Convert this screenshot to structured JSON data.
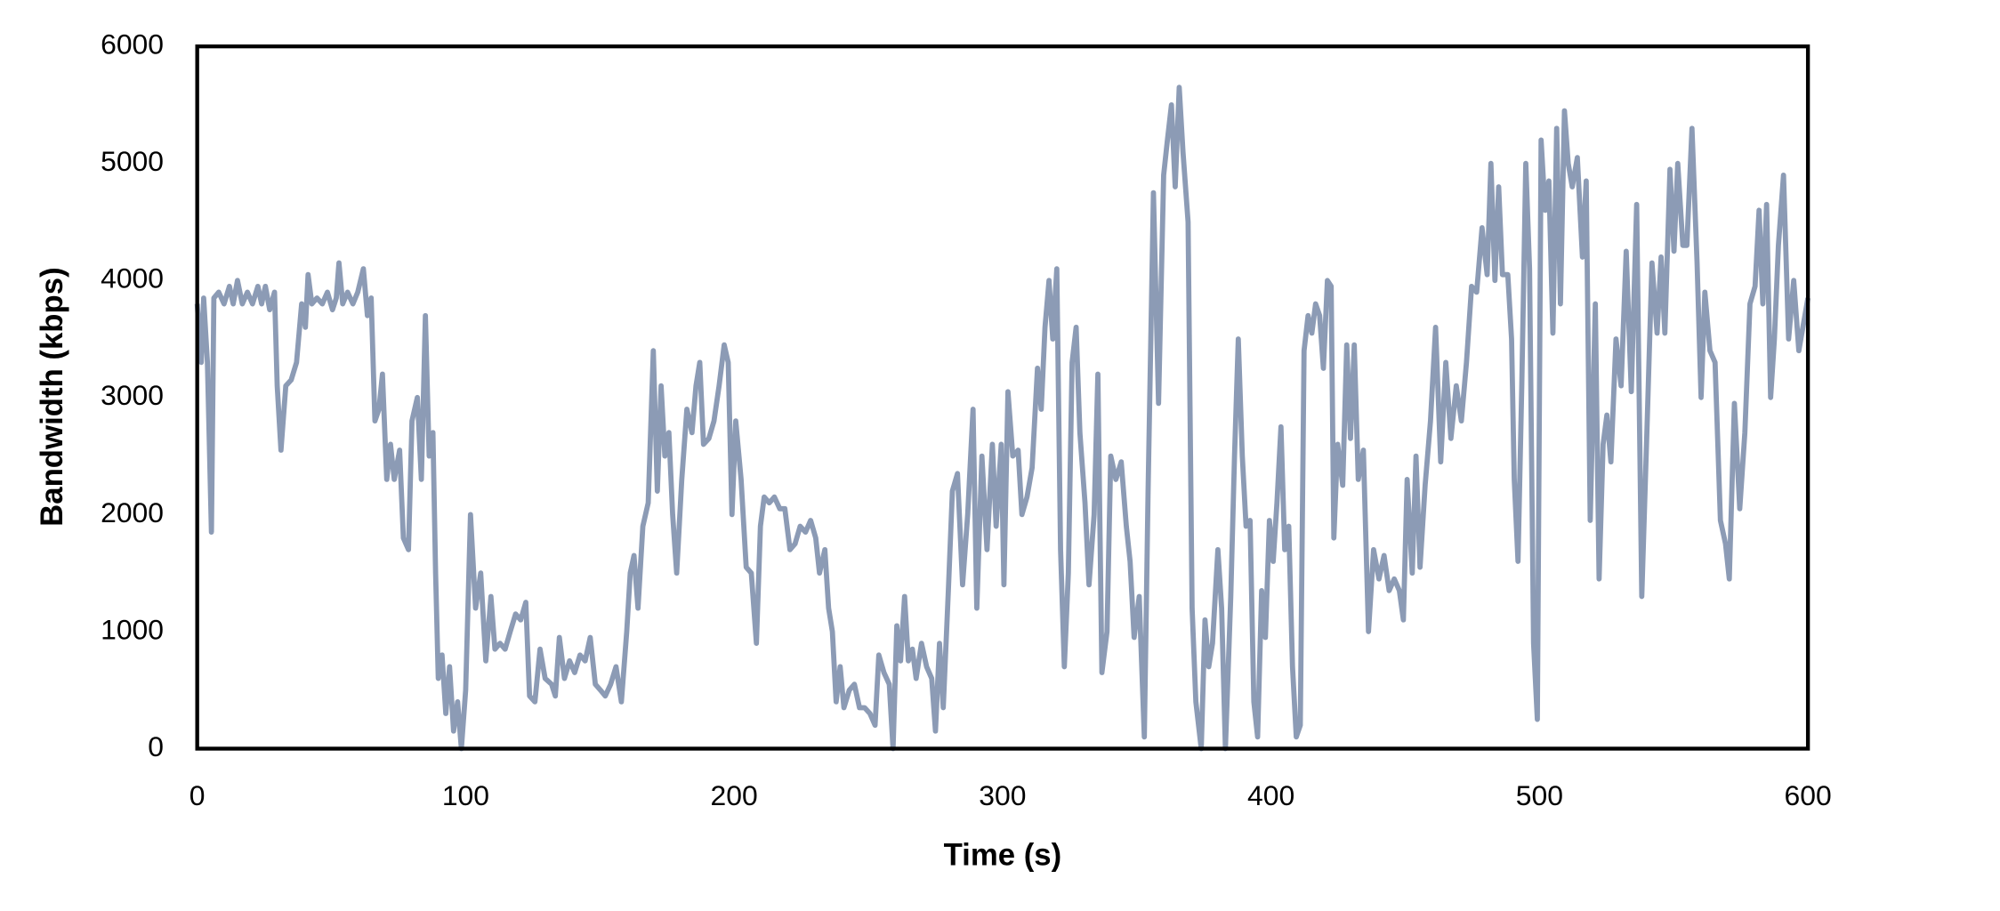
{
  "chart_data": {
    "type": "line",
    "xlabel": "Time (s)",
    "ylabel": "Bandwidth (kbps)",
    "xlim": [
      0,
      600
    ],
    "xticks": [
      0,
      100,
      200,
      300,
      400,
      500,
      600
    ],
    "ylim": [
      0,
      6000
    ],
    "yticks": [
      0,
      1000,
      2000,
      3000,
      4000,
      5000,
      6000
    ],
    "grid": false,
    "series": [
      {
        "color": "#8c9bb5",
        "x": [
          0,
          1.5,
          2.4,
          3.8,
          5.3,
          6.2,
          8,
          10,
          12,
          13.4,
          15,
          16.8,
          18.7,
          20.6,
          22.6,
          24,
          25.4,
          27,
          28.8,
          29.8,
          31.2,
          33,
          35,
          37,
          38.9,
          40.3,
          41.3,
          42.7,
          44.6,
          46.6,
          48.5,
          50.4,
          51.8,
          52.8,
          54.2,
          56,
          58,
          59.8,
          61.9,
          63.4,
          64.8,
          66.2,
          67.7,
          69,
          70.6,
          72,
          73.4,
          75.4,
          76.8,
          78.7,
          80,
          82,
          83.5,
          85,
          86.4,
          87.8,
          88.8,
          89.8,
          91.2,
          92.6,
          94,
          95.5,
          97,
          98.4,
          100,
          101.8,
          103.7,
          105.6,
          107.5,
          109.4,
          110.9,
          112.8,
          114.7,
          116.6,
          118.6,
          120.5,
          122.4,
          123.8,
          125.8,
          127.7,
          129.6,
          132,
          133.4,
          134.9,
          136.8,
          138.7,
          140.6,
          142.6,
          144.5,
          146.4,
          148.3,
          150.2,
          152,
          154,
          156,
          158,
          160,
          161.3,
          162.7,
          164.2,
          166,
          168,
          169.9,
          171.4,
          172.8,
          174.2,
          175.7,
          177.1,
          178.6,
          180.5,
          182.4,
          184.3,
          185.8,
          187.2,
          188.6,
          190.6,
          192.5,
          194.4,
          196.3,
          197.8,
          199.2,
          200.6,
          202.6,
          204.5,
          206.4,
          208.3,
          209.8,
          211.2,
          213.1,
          215,
          217,
          218.9,
          220.8,
          222.7,
          224.6,
          226.6,
          228.5,
          230.4,
          231.8,
          233.8,
          235.2,
          236.6,
          238,
          239.5,
          240.9,
          242.9,
          244.8,
          246.7,
          248.6,
          250.6,
          252.5,
          253.9,
          255.8,
          257.8,
          259.2,
          260.6,
          262,
          263.5,
          264.9,
          266.4,
          267.8,
          269.8,
          271.7,
          273.6,
          275,
          276.5,
          277.9,
          279.8,
          281.3,
          283.2,
          285.1,
          287,
          289,
          290.4,
          292.3,
          294.2,
          296.2,
          297.6,
          299.5,
          300.5,
          302,
          303.8,
          305.8,
          307.2,
          309.1,
          311,
          313,
          314.4,
          315.8,
          317.3,
          318.7,
          320.2,
          321.6,
          323,
          324.5,
          325.9,
          327.4,
          328.8,
          330.7,
          332.2,
          334.1,
          335.5,
          337,
          338.9,
          340.3,
          342.2,
          344.2,
          346.1,
          347.5,
          349,
          350.9,
          352.8,
          354.2,
          356.2,
          358.1,
          360,
          361.4,
          362.9,
          364.3,
          365.8,
          367.2,
          369.1,
          370.6,
          372,
          374,
          375.4,
          376.8,
          378.2,
          380.2,
          381.6,
          383,
          385,
          386.4,
          387.8,
          389.3,
          390.7,
          392.2,
          393.6,
          395,
          396.5,
          397.9,
          399.4,
          400.8,
          402.2,
          403.7,
          405.1,
          406.6,
          408,
          409.4,
          410.9,
          412.3,
          413.8,
          415.2,
          416.6,
          418.1,
          419.5,
          421,
          422.4,
          423.4,
          424.8,
          426.7,
          428.2,
          429.6,
          431,
          432.5,
          434.4,
          436.3,
          438.2,
          440.2,
          442.1,
          444,
          445.9,
          447.8,
          449.3,
          450.7,
          452.6,
          454,
          455.5,
          457.4,
          459.4,
          461.3,
          463.2,
          465.1,
          467,
          469,
          470.9,
          472.8,
          474.7,
          476.6,
          478.6,
          480.5,
          481.9,
          483.4,
          484.8,
          486.2,
          488.2,
          489.6,
          490.6,
          492,
          493.4,
          494.9,
          496.3,
          497.8,
          499.2,
          500.6,
          502.1,
          503.5,
          505,
          506.4,
          507.8,
          509.3,
          510.7,
          512.2,
          514.1,
          516,
          517.4,
          518.9,
          520.8,
          522.2,
          523.7,
          525.1,
          526.6,
          528.5,
          530.4,
          532.3,
          534.2,
          536.2,
          538.1,
          540,
          541.9,
          543.8,
          545.3,
          546.7,
          548.6,
          550.1,
          551.5,
          553.4,
          554.9,
          556.8,
          558.7,
          560.2,
          561.6,
          563.5,
          565.4,
          567.4,
          569.3,
          570.7,
          572.6,
          574.6,
          576.5,
          578.4,
          580.3,
          581.8,
          583.2,
          584.6,
          586.1,
          587.5,
          589,
          590.9,
          592.8,
          594.7,
          596.6,
          600
        ],
        "values": [
          3800,
          3300,
          3850,
          3300,
          1850,
          3850,
          3900,
          3800,
          3950,
          3800,
          4000,
          3800,
          3900,
          3800,
          3950,
          3800,
          3950,
          3750,
          3900,
          3100,
          2550,
          3100,
          3150,
          3300,
          3800,
          3600,
          4050,
          3800,
          3850,
          3800,
          3900,
          3750,
          3850,
          4150,
          3800,
          3900,
          3800,
          3900,
          4100,
          3700,
          3850,
          2800,
          2900,
          3200,
          2300,
          2600,
          2300,
          2550,
          1800,
          1700,
          2800,
          3000,
          2300,
          3700,
          2500,
          2700,
          1500,
          600,
          800,
          300,
          700,
          150,
          400,
          0,
          500,
          2000,
          1200,
          1500,
          750,
          1300,
          850,
          900,
          850,
          1000,
          1150,
          1100,
          1250,
          450,
          400,
          850,
          600,
          550,
          450,
          950,
          600,
          750,
          650,
          800,
          750,
          950,
          550,
          500,
          450,
          550,
          700,
          400,
          1000,
          1500,
          1650,
          1200,
          1900,
          2100,
          3400,
          2200,
          3100,
          2500,
          2700,
          2000,
          1500,
          2300,
          2900,
          2700,
          3100,
          3300,
          2600,
          2650,
          2800,
          3100,
          3450,
          3300,
          2000,
          2800,
          2300,
          1550,
          1500,
          900,
          1900,
          2150,
          2100,
          2150,
          2050,
          2050,
          1700,
          1750,
          1900,
          1850,
          1950,
          1800,
          1500,
          1700,
          1200,
          1000,
          400,
          700,
          350,
          500,
          550,
          350,
          350,
          300,
          200,
          800,
          650,
          550,
          0,
          1050,
          750,
          1300,
          750,
          850,
          600,
          900,
          700,
          600,
          150,
          900,
          350,
          1350,
          2200,
          2350,
          1400,
          2000,
          2900,
          1200,
          2500,
          1700,
          2600,
          1900,
          2600,
          1400,
          3050,
          2500,
          2550,
          2000,
          2150,
          2400,
          3250,
          2900,
          3600,
          4000,
          3500,
          4100,
          1700,
          700,
          1500,
          3300,
          3600,
          2700,
          2100,
          1400,
          2000,
          3200,
          650,
          1000,
          2500,
          2300,
          2450,
          1900,
          1600,
          950,
          1300,
          100,
          2200,
          4750,
          2950,
          4900,
          5200,
          5500,
          4800,
          5650,
          5100,
          4500,
          1200,
          400,
          0,
          1100,
          700,
          900,
          1700,
          1200,
          0,
          1300,
          2500,
          3500,
          2500,
          1900,
          1950,
          400,
          100,
          1350,
          950,
          1950,
          1600,
          2100,
          2750,
          1700,
          1900,
          700,
          100,
          200,
          3400,
          3700,
          3550,
          3800,
          3700,
          3250,
          4000,
          3950,
          1800,
          2600,
          2250,
          3450,
          2650,
          3450,
          2300,
          2550,
          1000,
          1700,
          1450,
          1650,
          1350,
          1450,
          1350,
          1100,
          2300,
          1500,
          2500,
          1550,
          2250,
          2800,
          3600,
          2450,
          3300,
          2650,
          3100,
          2800,
          3300,
          3950,
          3900,
          4450,
          4050,
          5000,
          4000,
          4800,
          4050,
          4050,
          3500,
          2300,
          1600,
          3100,
          5000,
          4100,
          900,
          250,
          5200,
          4600,
          4850,
          3550,
          5300,
          3800,
          5450,
          5000,
          4800,
          5050,
          4200,
          4850,
          1950,
          3800,
          1450,
          2600,
          2850,
          2450,
          3500,
          3100,
          4250,
          3050,
          4650,
          1300,
          2700,
          4150,
          3550,
          4200,
          3550,
          4950,
          4250,
          5000,
          4300,
          4300,
          5300,
          4150,
          3000,
          3900,
          3400,
          3300,
          1950,
          1750,
          1450,
          2950,
          2050,
          2700,
          3800,
          3950,
          4600,
          3800,
          4650,
          3000,
          3500,
          4300,
          4900,
          3500,
          4000,
          3400,
          3850
        ]
      }
    ]
  }
}
